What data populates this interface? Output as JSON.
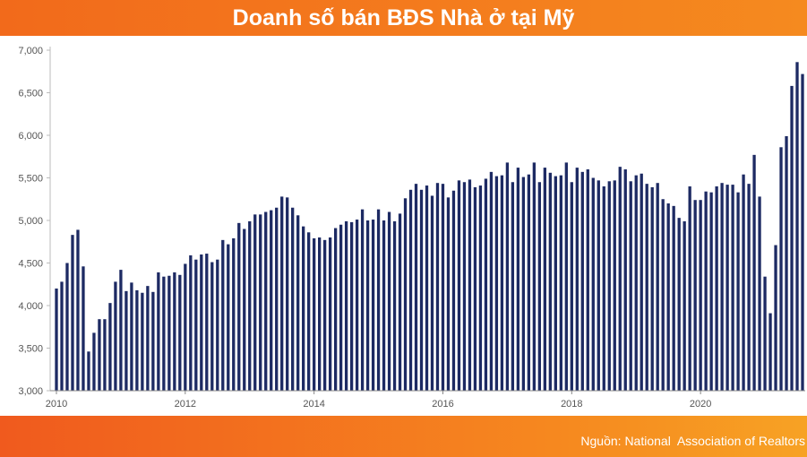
{
  "header": {
    "title": "Doanh số bán BĐS Nhà ở tại Mỹ"
  },
  "footer": {
    "source": "Nguồn: National  Association of Realtors"
  },
  "colors": {
    "bar": "#1d2a63",
    "header": "#f26a1b",
    "axis": "#555555"
  },
  "chart_data": {
    "type": "bar",
    "x_start": 2010,
    "x_step_months": 1,
    "x_ticks": [
      "2010",
      "2012",
      "2014",
      "2016",
      "2018",
      "2020"
    ],
    "y_ticks": [
      "3,000",
      "3,500",
      "4,000",
      "4,500",
      "5,000",
      "5,500",
      "6,000",
      "6,500",
      "7,000"
    ],
    "ylim": [
      3000,
      7000
    ],
    "grid": false,
    "legend": "none",
    "values": [
      4200,
      4280,
      4500,
      4830,
      4890,
      4460,
      3460,
      3680,
      3840,
      3840,
      4030,
      4280,
      4420,
      4170,
      4270,
      4180,
      4150,
      4230,
      4160,
      4390,
      4340,
      4350,
      4390,
      4360,
      4490,
      4590,
      4540,
      4600,
      4610,
      4510,
      4540,
      4770,
      4720,
      4790,
      4970,
      4900,
      4990,
      5070,
      5070,
      5100,
      5120,
      5150,
      5280,
      5270,
      5150,
      5060,
      4930,
      4860,
      4790,
      4800,
      4770,
      4800,
      4910,
      4950,
      4990,
      4980,
      5010,
      5130,
      5000,
      5010,
      5130,
      5000,
      5100,
      4990,
      5080,
      5260,
      5360,
      5430,
      5360,
      5410,
      5290,
      5440,
      5430,
      5270,
      5350,
      5470,
      5450,
      5480,
      5390,
      5410,
      5490,
      5570,
      5520,
      5530,
      5680,
      5450,
      5620,
      5510,
      5540,
      5680,
      5450,
      5620,
      5560,
      5520,
      5530,
      5680,
      5450,
      5620,
      5570,
      5600,
      5500,
      5470,
      5400,
      5460,
      5470,
      5630,
      5600,
      5460,
      5530,
      5550,
      5430,
      5390,
      5440,
      5250,
      5200,
      5170,
      5030,
      4990,
      5400,
      5240,
      5240,
      5340,
      5330,
      5400,
      5440,
      5420,
      5420,
      5330,
      5540,
      5430,
      5770,
      5280,
      4340,
      3910,
      4710,
      5860,
      5990,
      6580,
      6860,
      6720
    ]
  }
}
